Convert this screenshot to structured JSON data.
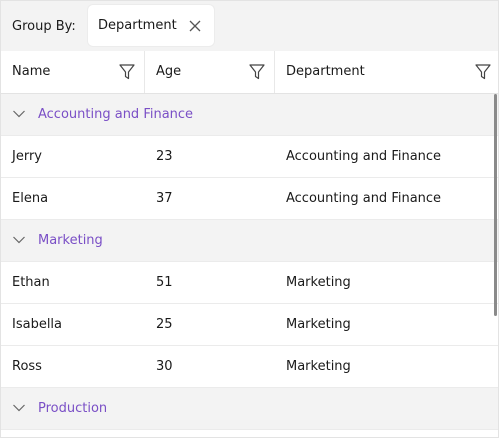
{
  "group_by": {
    "label": "Group By:",
    "chip_label": "Department",
    "close_icon": "close-icon"
  },
  "columns": [
    {
      "label": "Name"
    },
    {
      "label": "Age"
    },
    {
      "label": "Department"
    }
  ],
  "groups": [
    {
      "title": "Accounting and Finance",
      "rows": [
        {
          "name": "Jerry",
          "age": "23",
          "department": "Accounting and Finance"
        },
        {
          "name": "Elena",
          "age": "37",
          "department": "Accounting and Finance"
        }
      ]
    },
    {
      "title": "Marketing",
      "rows": [
        {
          "name": "Ethan",
          "age": "51",
          "department": "Marketing"
        },
        {
          "name": "Isabella",
          "age": "25",
          "department": "Marketing"
        },
        {
          "name": "Ross",
          "age": "30",
          "department": "Marketing"
        }
      ]
    },
    {
      "title": "Production",
      "rows": []
    }
  ],
  "colors": {
    "accent": "#7a4fc6",
    "group_background": "#f3f3f3"
  }
}
